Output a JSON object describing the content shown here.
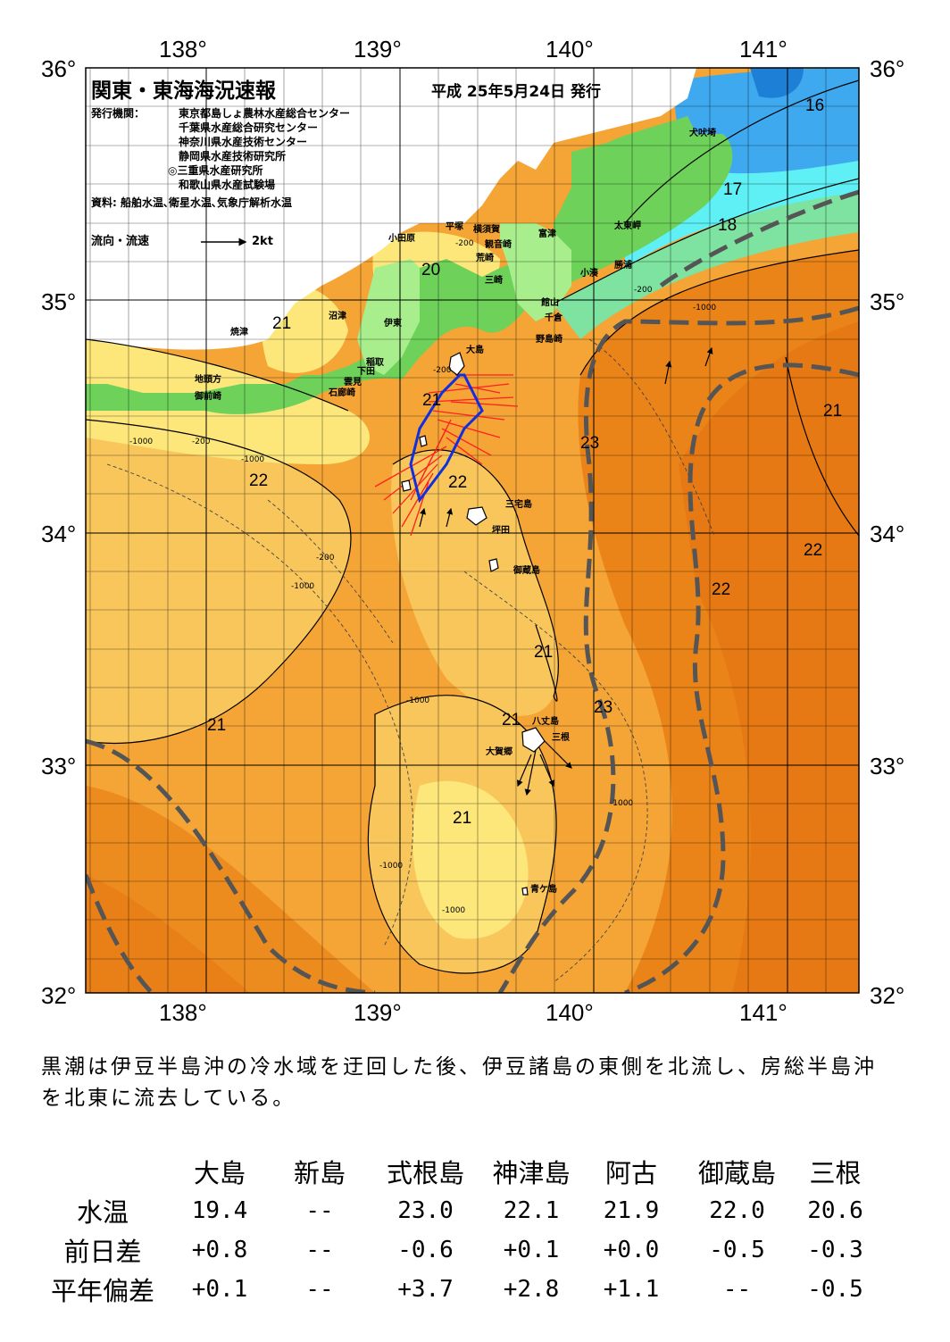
{
  "header": {
    "title": "関東・東海海況速報",
    "date": "平成 25年5月24日 発行",
    "issuer_label": "発行機関：",
    "issuers": [
      "東京都島しょ農林水産総合センター",
      "千葉県水産総合研究センター",
      "神奈川県水産技術センター",
      "静岡県水産技術研究所",
      "◎三重県水産研究所",
      "和歌山県水産試験場"
    ],
    "source": "資料: 船舶水温､衛星水温､気象庁解析水温",
    "flow_label": "流向・流速",
    "flow_scale": "2kt"
  },
  "axes": {
    "lon_labels": [
      "138°",
      "139°",
      "140°",
      "141°"
    ],
    "lat_labels": [
      "36°",
      "35°",
      "34°",
      "33°",
      "32°"
    ]
  },
  "isotherm_labels": [
    "16",
    "17",
    "18",
    "20",
    "21",
    "21",
    "21",
    "22",
    "22",
    "22",
    "22",
    "23",
    "23",
    "21",
    "21",
    "21",
    "21",
    "21"
  ],
  "depth_labels": [
    "-200",
    "-1000",
    "-200",
    "-1000",
    "-200",
    "-1000",
    "-200",
    "-1000",
    "-1000",
    "-1000",
    "-1000",
    "-1000",
    "-200"
  ],
  "places": [
    "犬吠埼",
    "太東岬",
    "勝浦",
    "小湊",
    "富津",
    "横須賀",
    "平塚",
    "観音崎",
    "荒崎",
    "三崎",
    "小田原",
    "館山",
    "千倉",
    "野島崎",
    "沼津",
    "伊東",
    "焼津",
    "稲取",
    "下田",
    "雲見",
    "石廊崎",
    "地頭方",
    "御前崎",
    "大島",
    "三宅島",
    "坪田",
    "御蔵島",
    "八丈島",
    "三根",
    "大賀郷",
    "青ケ島"
  ],
  "colors": {
    "land_dark": "#6ed15a",
    "land_light": "#a8ee8c",
    "sea_yellow": "#fde77a",
    "sea_lightorange": "#f9c65c",
    "sea_orange": "#f5a436",
    "sea_deeporange": "#ea8419",
    "sea_darkorange": "#e26d10",
    "cold_cyan": "#5ef0f5",
    "cold_blue": "#3fa9ef",
    "kuroshio_axis": "#555555",
    "current_red": "#ff2020",
    "track_blue": "#1030e0"
  },
  "summary": "黒潮は伊豆半島沖の冷水域を迂回した後、伊豆諸島の東側を北流し、房総半島沖を北東に流去している。",
  "stats": {
    "columns": [
      "大島",
      "新島",
      "式根島",
      "神津島",
      "阿古",
      "御蔵島",
      "三根"
    ],
    "rows": [
      {
        "label": "水温",
        "values": [
          "19.4",
          "--",
          "23.0",
          "22.1",
          "21.9",
          "22.0",
          "20.6"
        ]
      },
      {
        "label": "前日差",
        "values": [
          "+0.8",
          "--",
          "-0.6",
          "+0.1",
          "+0.0",
          "-0.5",
          "-0.3"
        ]
      },
      {
        "label": "平年偏差",
        "values": [
          "+0.1",
          "--",
          "+3.7",
          "+2.8",
          "+1.1",
          "--",
          "-0.5"
        ]
      }
    ]
  }
}
